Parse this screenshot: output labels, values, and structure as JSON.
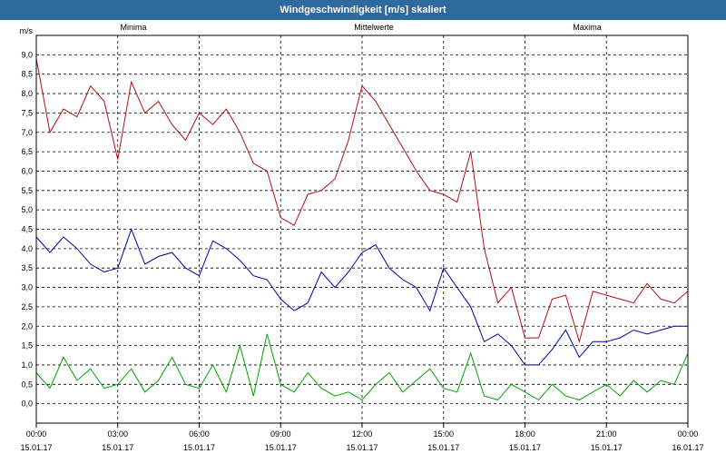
{
  "window": {
    "title": "Windgeschwindigkeit [m/s] skaliert"
  },
  "chart_data": {
    "type": "line",
    "title": "Windgeschwindigkeit [m/s] skaliert",
    "ylabel": "m/s",
    "ylim": [
      -0.5,
      9.5
    ],
    "yticks": [
      "0,0",
      "0,5",
      "1,0",
      "1,5",
      "2,0",
      "2,5",
      "3,0",
      "3,5",
      "4,0",
      "4,5",
      "5,0",
      "5,5",
      "6,0",
      "6,5",
      "7,0",
      "7,5",
      "8,0",
      "8,5",
      "9,0"
    ],
    "x_ticks": [
      {
        "time": "00:00",
        "date": "15.01.17"
      },
      {
        "time": "03:00",
        "date": "15.01.17"
      },
      {
        "time": "06:00",
        "date": "15.01.17"
      },
      {
        "time": "09:00",
        "date": "15.01.17"
      },
      {
        "time": "12:00",
        "date": "15.01.17"
      },
      {
        "time": "15:00",
        "date": "15.01.17"
      },
      {
        "time": "18:00",
        "date": "15.01.17"
      },
      {
        "time": "21:00",
        "date": "15.01.17"
      },
      {
        "time": "00:00",
        "date": "16.01.17"
      }
    ],
    "grid": true,
    "series": [
      {
        "name": "Minima",
        "color": "#00a000",
        "x": [
          0,
          0.5,
          1,
          1.5,
          2,
          2.5,
          3,
          3.5,
          4,
          4.5,
          5,
          5.5,
          6,
          6.5,
          7,
          7.5,
          8,
          8.5,
          9,
          9.5,
          10,
          10.5,
          11,
          11.5,
          12,
          12.5,
          13,
          13.5,
          14,
          14.5,
          15,
          15.5,
          16,
          16.5,
          17,
          17.5,
          18,
          18.5,
          19,
          19.5,
          20,
          20.5,
          21,
          21.5,
          22,
          22.5,
          23,
          23.5,
          24
        ],
        "values": [
          0.8,
          0.4,
          1.2,
          0.6,
          0.9,
          0.4,
          0.5,
          0.9,
          0.3,
          0.6,
          1.2,
          0.5,
          0.4,
          1.0,
          0.3,
          1.5,
          0.2,
          1.8,
          0.5,
          0.3,
          0.8,
          0.4,
          0.2,
          0.3,
          0.1,
          0.5,
          0.8,
          0.3,
          0.6,
          0.9,
          0.4,
          0.3,
          1.3,
          0.2,
          0.1,
          0.5,
          0.3,
          0.1,
          0.5,
          0.2,
          0.1,
          0.3,
          0.5,
          0.2,
          0.6,
          0.3,
          0.6,
          0.5,
          1.3
        ]
      },
      {
        "name": "Mittelwerte",
        "color": "#0000a0",
        "x": [
          0,
          0.5,
          1,
          1.5,
          2,
          2.5,
          3,
          3.5,
          4,
          4.5,
          5,
          5.5,
          6,
          6.5,
          7,
          7.5,
          8,
          8.5,
          9,
          9.5,
          10,
          10.5,
          11,
          11.5,
          12,
          12.5,
          13,
          13.5,
          14,
          14.5,
          15,
          15.5,
          16,
          16.5,
          17,
          17.5,
          18,
          18.5,
          19,
          19.5,
          20,
          20.5,
          21,
          21.5,
          22,
          22.5,
          23,
          23.5,
          24
        ],
        "values": [
          4.3,
          3.9,
          4.3,
          4.0,
          3.6,
          3.4,
          3.5,
          4.5,
          3.6,
          3.8,
          3.9,
          3.5,
          3.3,
          4.2,
          4.0,
          3.7,
          3.3,
          3.2,
          2.7,
          2.4,
          2.6,
          3.4,
          3.0,
          3.4,
          3.9,
          4.1,
          3.5,
          3.2,
          3.0,
          2.4,
          3.5,
          3.0,
          2.5,
          1.6,
          1.8,
          1.5,
          1.0,
          1.0,
          1.4,
          1.9,
          1.2,
          1.6,
          1.6,
          1.7,
          1.9,
          1.8,
          1.9,
          2.0,
          2.0
        ]
      },
      {
        "name": "Maxima",
        "color": "#b01010",
        "x": [
          0,
          0.5,
          1,
          1.5,
          2,
          2.5,
          3,
          3.5,
          4,
          4.5,
          5,
          5.5,
          6,
          6.5,
          7,
          7.5,
          8,
          8.5,
          9,
          9.5,
          10,
          10.5,
          11,
          11.5,
          12,
          12.5,
          13,
          13.5,
          14,
          14.5,
          15,
          15.5,
          16,
          16.5,
          17,
          17.5,
          18,
          18.5,
          19,
          19.5,
          20,
          20.5,
          21,
          21.5,
          22,
          22.5,
          23,
          23.5,
          24
        ],
        "values": [
          8.9,
          7.0,
          7.6,
          7.4,
          8.2,
          7.8,
          6.3,
          8.3,
          7.5,
          7.8,
          7.2,
          6.8,
          7.5,
          7.2,
          7.6,
          7.0,
          6.2,
          6.0,
          4.8,
          4.6,
          5.4,
          5.5,
          5.8,
          6.8,
          8.2,
          7.8,
          7.2,
          6.6,
          6.0,
          5.5,
          5.4,
          5.2,
          6.5,
          4.0,
          2.6,
          3.0,
          1.7,
          1.7,
          2.7,
          2.8,
          1.6,
          2.9,
          2.8,
          2.7,
          2.6,
          3.1,
          2.7,
          2.6,
          2.9
        ]
      }
    ]
  }
}
